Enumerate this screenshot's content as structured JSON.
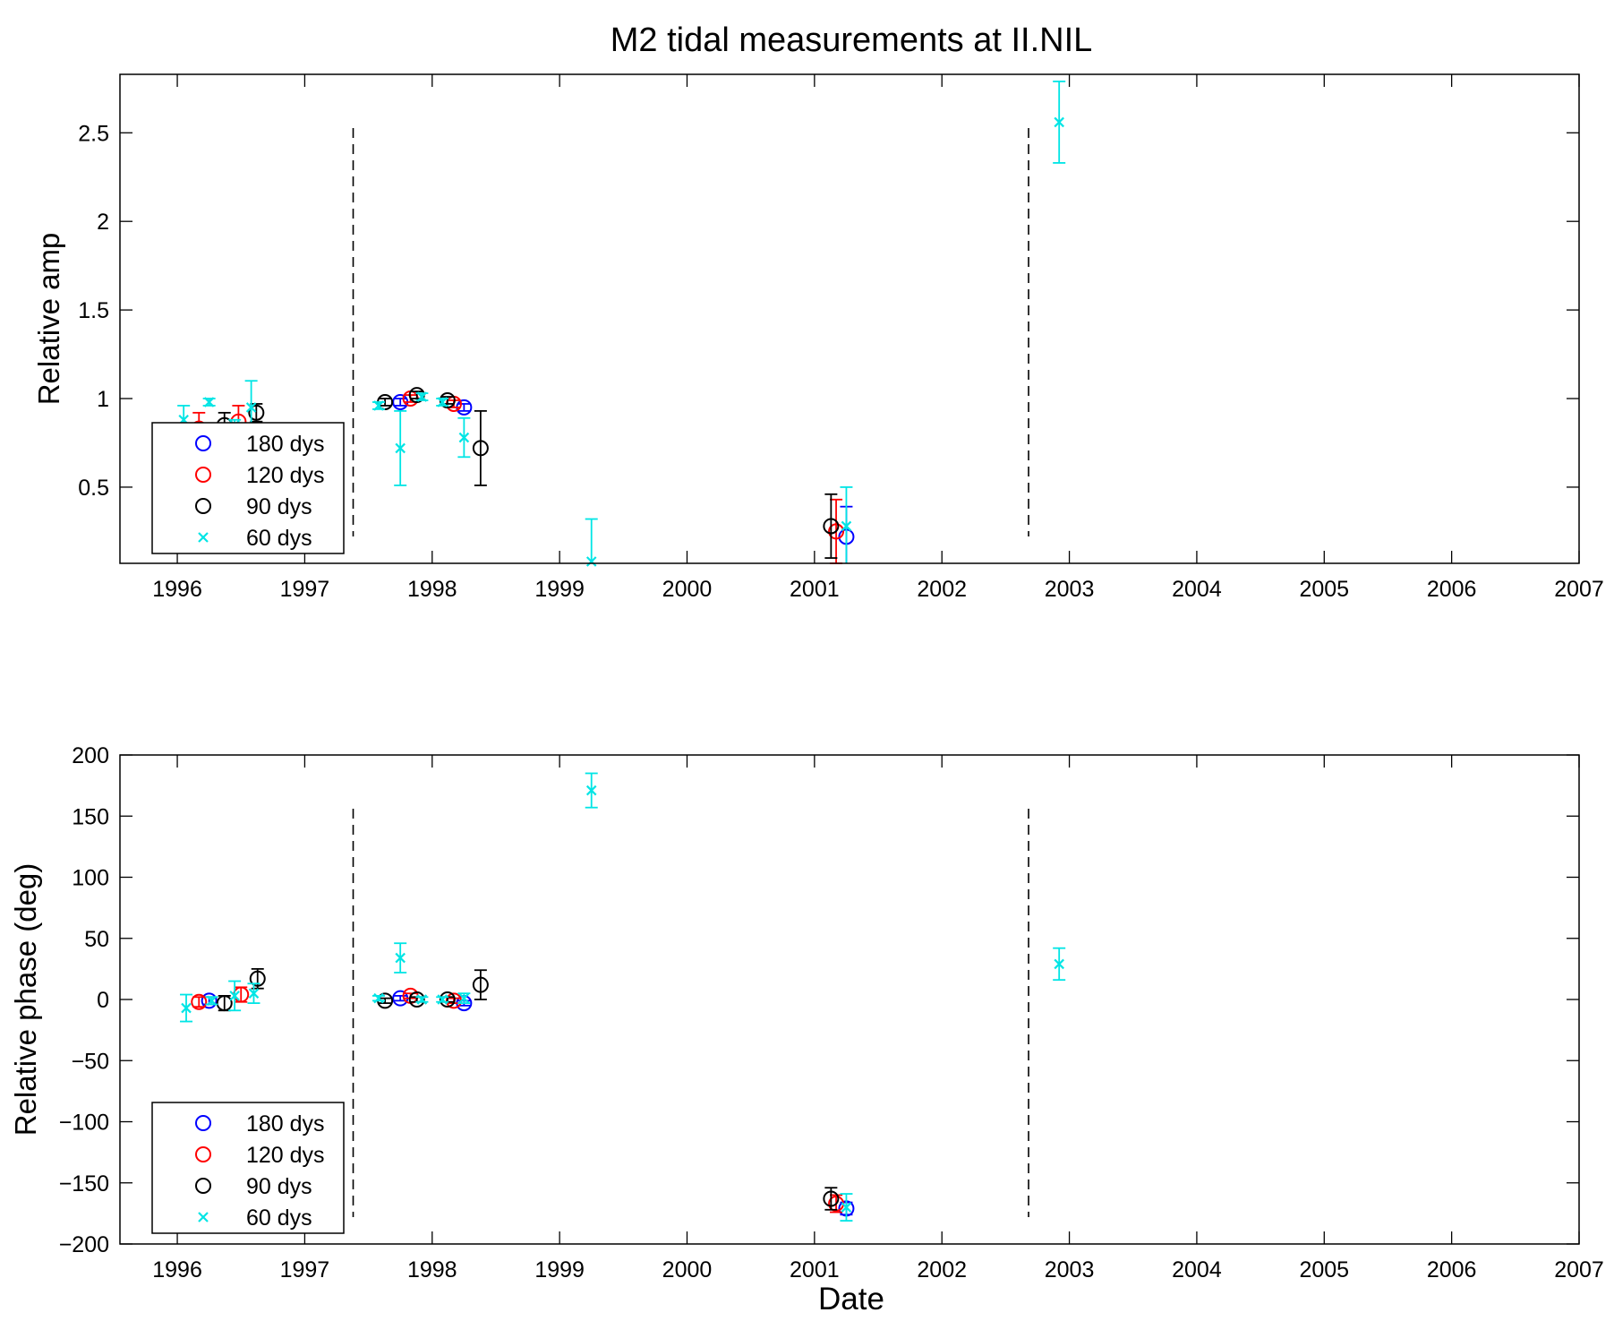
{
  "figure": {
    "title": "M2 tidal measurements at II.NIL",
    "xlabel": "Date"
  },
  "legend": {
    "entries": [
      {
        "label": "180 dys",
        "color": "#0000ff",
        "marker": "circle"
      },
      {
        "label": "120 dys",
        "color": "#ff0000",
        "marker": "circle"
      },
      {
        "label": "90 dys",
        "color": "#000000",
        "marker": "circle"
      },
      {
        "label": "60 dys",
        "color": "#00e5e5",
        "marker": "x"
      }
    ]
  },
  "chart_data": [
    {
      "type": "scatter",
      "title": "M2 tidal measurements at II.NIL",
      "xlabel": "",
      "ylabel": "Relative amp",
      "xlim": [
        1995.55,
        2007
      ],
      "ylim": [
        0.07,
        2.83
      ],
      "xticks": [
        "1996",
        "1997",
        "1998",
        "1999",
        "2000",
        "2001",
        "2002",
        "2003",
        "2004",
        "2005",
        "2006",
        "2007"
      ],
      "yticks": [
        "0.5",
        "1",
        "1.5",
        "2",
        "2.5"
      ],
      "grid": false,
      "legend_position": "bottom-left",
      "vlines_dashed": [
        1997.38,
        2002.68
      ],
      "series": [
        {
          "name": "180 dys",
          "points": [
            {
              "x": 1997.75,
              "y": 0.98,
              "err": 0.02
            },
            {
              "x": 1998.25,
              "y": 0.95,
              "err": 0.02
            },
            {
              "x": 2001.25,
              "y": 0.22,
              "err": 0.17
            }
          ]
        },
        {
          "name": "120 dys",
          "points": [
            {
              "x": 1996.17,
              "y": 0.83,
              "err": 0.09
            },
            {
              "x": 1996.48,
              "y": 0.87,
              "err": 0.09
            },
            {
              "x": 1997.83,
              "y": 1.0,
              "err": 0.02
            },
            {
              "x": 1998.17,
              "y": 0.97,
              "err": 0.02
            },
            {
              "x": 2001.17,
              "y": 0.25,
              "err": 0.18
            }
          ]
        },
        {
          "name": "90 dys",
          "points": [
            {
              "x": 1996.37,
              "y": 0.85,
              "err": 0.07
            },
            {
              "x": 1996.62,
              "y": 0.92,
              "err": 0.05
            },
            {
              "x": 1997.63,
              "y": 0.98,
              "err": 0.02
            },
            {
              "x": 1997.88,
              "y": 1.02,
              "err": 0.02
            },
            {
              "x": 1998.12,
              "y": 0.99,
              "err": 0.02
            },
            {
              "x": 1998.38,
              "y": 0.72,
              "err": 0.21
            },
            {
              "x": 2001.13,
              "y": 0.28,
              "err": 0.18
            }
          ]
        },
        {
          "name": "60 dys",
          "points": [
            {
              "x": 1996.05,
              "y": 0.88,
              "err": 0.08
            },
            {
              "x": 1996.25,
              "y": 0.98,
              "err": 0.02
            },
            {
              "x": 1996.45,
              "y": 0.85,
              "err": 0.03
            },
            {
              "x": 1996.58,
              "y": 0.95,
              "err": 0.15
            },
            {
              "x": 1997.58,
              "y": 0.96,
              "err": 0.02
            },
            {
              "x": 1997.75,
              "y": 0.72,
              "err": 0.21
            },
            {
              "x": 1997.92,
              "y": 1.01,
              "err": 0.02
            },
            {
              "x": 1998.08,
              "y": 0.98,
              "err": 0.02
            },
            {
              "x": 1998.25,
              "y": 0.78,
              "err": 0.11
            },
            {
              "x": 1999.25,
              "y": 0.08,
              "err": 0.24
            },
            {
              "x": 2001.25,
              "y": 0.28,
              "err": 0.22
            },
            {
              "x": 2002.92,
              "y": 2.56,
              "err": 0.23
            }
          ]
        }
      ]
    },
    {
      "type": "scatter",
      "title": "",
      "xlabel": "Date",
      "ylabel": "Relative phase (deg)",
      "xlim": [
        1995.55,
        2007
      ],
      "ylim": [
        -200,
        200
      ],
      "xticks": [
        "1996",
        "1997",
        "1998",
        "1999",
        "2000",
        "2001",
        "2002",
        "2003",
        "2004",
        "2005",
        "2006",
        "2007"
      ],
      "yticks": [
        "200",
        "150",
        "100",
        "50",
        "0",
        "−50",
        "−100",
        "−150",
        "−200"
      ],
      "grid": false,
      "legend_position": "bottom-left",
      "vlines_dashed": [
        1997.38,
        2002.68
      ],
      "series": [
        {
          "name": "180 dys",
          "points": [
            {
              "x": 1996.25,
              "y": -1,
              "err": 3
            },
            {
              "x": 1997.75,
              "y": 1,
              "err": 2
            },
            {
              "x": 1998.25,
              "y": -3,
              "err": 2
            },
            {
              "x": 2001.25,
              "y": -171,
              "err": 5
            }
          ]
        },
        {
          "name": "120 dys",
          "points": [
            {
              "x": 1996.17,
              "y": -2,
              "err": 4
            },
            {
              "x": 1996.5,
              "y": 4,
              "err": 6
            },
            {
              "x": 1997.83,
              "y": 3,
              "err": 2
            },
            {
              "x": 1998.17,
              "y": -1,
              "err": 2
            },
            {
              "x": 2001.17,
              "y": -167,
              "err": 7
            }
          ]
        },
        {
          "name": "90 dys",
          "points": [
            {
              "x": 1996.37,
              "y": -3,
              "err": 6
            },
            {
              "x": 1996.63,
              "y": 17,
              "err": 8
            },
            {
              "x": 1997.63,
              "y": -1,
              "err": 2
            },
            {
              "x": 1997.88,
              "y": 0,
              "err": 2
            },
            {
              "x": 1998.12,
              "y": 0,
              "err": 2
            },
            {
              "x": 1998.38,
              "y": 12,
              "err": 12
            },
            {
              "x": 2001.13,
              "y": -163,
              "err": 9
            }
          ]
        },
        {
          "name": "60 dys",
          "points": [
            {
              "x": 1996.07,
              "y": -7,
              "err": 11
            },
            {
              "x": 1996.27,
              "y": -1,
              "err": 3
            },
            {
              "x": 1996.45,
              "y": 3,
              "err": 12
            },
            {
              "x": 1996.6,
              "y": 5,
              "err": 8
            },
            {
              "x": 1997.58,
              "y": 1,
              "err": 2
            },
            {
              "x": 1997.75,
              "y": 34,
              "err": 12
            },
            {
              "x": 1997.92,
              "y": 0,
              "err": 2
            },
            {
              "x": 1998.08,
              "y": 0,
              "err": 2
            },
            {
              "x": 1998.25,
              "y": 1,
              "err": 4
            },
            {
              "x": 1999.25,
              "y": 171,
              "err": 14
            },
            {
              "x": 2001.25,
              "y": -170,
              "err": 11
            },
            {
              "x": 2002.92,
              "y": 29,
              "err": 13
            }
          ]
        }
      ]
    }
  ]
}
